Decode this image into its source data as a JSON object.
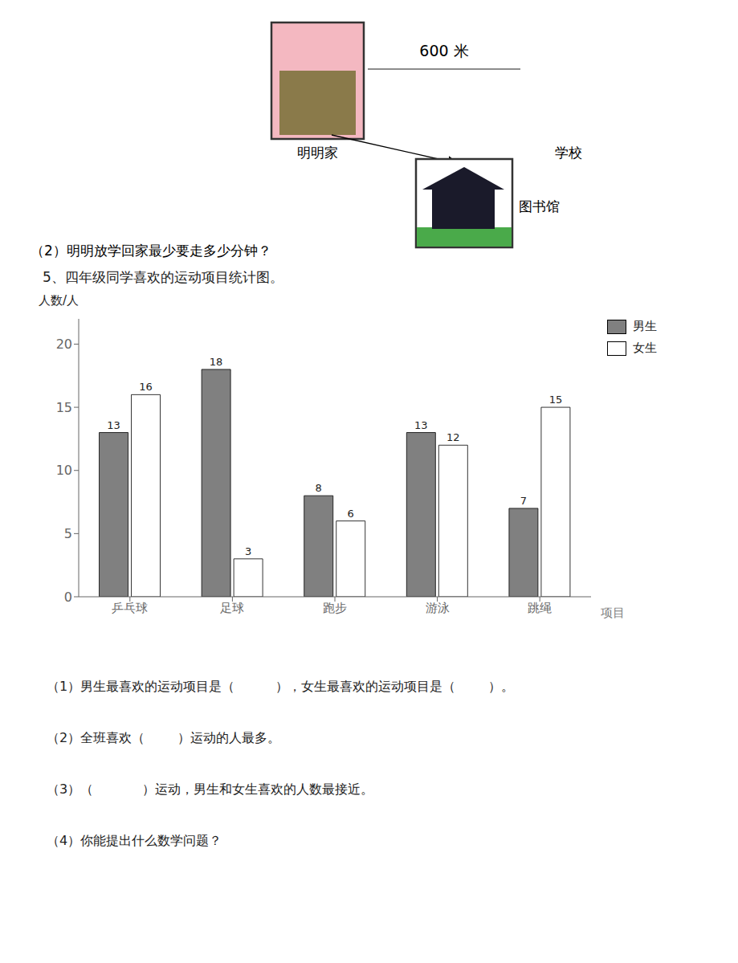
{
  "chart_data": {
    "type": "bar",
    "title": "5、四年级同学喜欢的运动项目统计图。",
    "xlabel": "项目",
    "ylabel": "人数/人",
    "categories": [
      "乒乓球",
      "足球",
      "跑步",
      "游泳",
      "跳绳"
    ],
    "series": [
      {
        "name": "男生",
        "color": "#808080",
        "values": [
          13,
          18,
          8,
          13,
          7
        ]
      },
      {
        "name": "女生",
        "color": "#ffffff",
        "values": [
          16,
          3,
          6,
          12,
          15
        ]
      }
    ],
    "ylim": [
      0,
      22
    ],
    "yticks": [
      0,
      5,
      10,
      15,
      20
    ],
    "data_labels": true,
    "grid": false,
    "legend": "upper right",
    "annotations": [
      "明明家",
      "600 米",
      "学校",
      "图书馆",
      "（2）明明放学回家最少要走多少分钟？",
      "（1）男生最喜欢的运动项目是（          ），女生最喜欢的运动项目是（        ）。",
      "（2）全班喜欢（        ）运动的人最多。",
      "（3）（            ）运动，男生和女生喜欢的人数最接近。",
      "（4）你能提出什么数学问题？"
    ]
  }
}
